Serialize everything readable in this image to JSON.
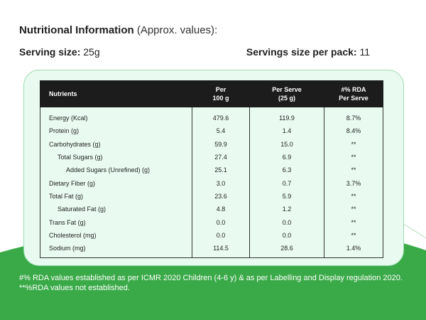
{
  "colors": {
    "green": "#3aaa48",
    "card_bg": "#e9fbf0",
    "card_border": "#9cdcb3",
    "header_bg": "#1c1c1c"
  },
  "title": {
    "bold": "Nutritional Information",
    "light": "(Approx. values):"
  },
  "serving_size": {
    "label": "Serving size:",
    "value": "25g"
  },
  "servings_per_pack": {
    "label": "Servings size per pack:",
    "value": "11"
  },
  "table": {
    "headers": {
      "nutrients": "Nutrients",
      "per100_line1": "Per",
      "per100_line2": "100 g",
      "perserve_line1": "Per Serve",
      "perserve_line2": "(25 g)",
      "rda_line1": "#% RDA",
      "rda_line2": "Per Serve"
    },
    "rows": [
      {
        "name": "Energy (Kcal)",
        "per100": "479.6",
        "perserve": "119.9",
        "rda": "8.7%"
      },
      {
        "name": "Protein (g)",
        "per100": "5.4",
        "perserve": "1.4",
        "rda": "8.4%"
      },
      {
        "name": "Carbohydrates (g)",
        "per100": "59.9",
        "perserve": "15.0",
        "rda": "**"
      },
      {
        "name": "Total Sugars (g)",
        "per100": "27.4",
        "perserve": "6.9",
        "rda": "**"
      },
      {
        "name": "Added Sugars (Unrefined) (g)",
        "per100": "25.1",
        "perserve": "6.3",
        "rda": "**"
      },
      {
        "name": "Dietary Fiber (g)",
        "per100": "3.0",
        "perserve": "0.7",
        "rda": "3.7%"
      },
      {
        "name": "Total Fat (g)",
        "per100": "23.6",
        "perserve": "5.9",
        "rda": "**"
      },
      {
        "name": "Saturated Fat (g)",
        "per100": "4.8",
        "perserve": "1.2",
        "rda": "**"
      },
      {
        "name": "Trans Fat (g)",
        "per100": "0.0",
        "perserve": "0.0",
        "rda": "**"
      },
      {
        "name": "Cholesterol (mg)",
        "per100": "0.0",
        "perserve": "0.0",
        "rda": "**"
      },
      {
        "name": "Sodium (mg)",
        "per100": "114.5",
        "perserve": "28.6",
        "rda": "1.4%"
      }
    ]
  },
  "footnote": "#% RDA values established as per ICMR 2020 Children (4-6 y) & as per Labelling and Display regulation 2020. **%RDA values not established."
}
